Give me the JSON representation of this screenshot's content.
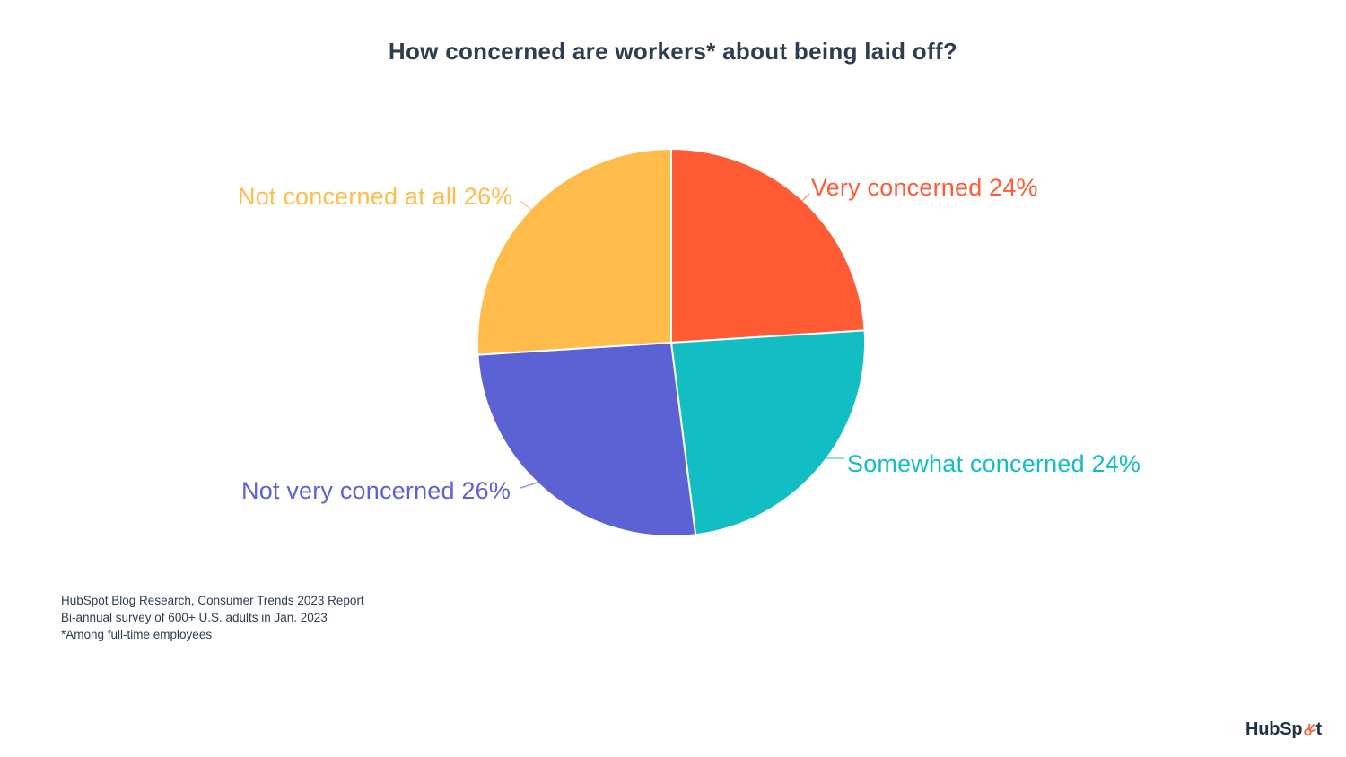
{
  "title": {
    "text": "How concerned are workers* about being laid off?",
    "color": "#2D3E50"
  },
  "chart_data": {
    "type": "pie",
    "title": "How concerned are workers* about being laid off?",
    "start_angle_deg": 0,
    "direction": "clockwise",
    "legend": "none",
    "labels_position": "outside-with-connectors",
    "slices": [
      {
        "label": "Very concerned",
        "value": 24,
        "display": "Very concerned 24%",
        "color": "#FF5C35"
      },
      {
        "label": "Somewhat concerned",
        "value": 24,
        "display": "Somewhat concerned 24%",
        "color": "#12BEC4"
      },
      {
        "label": "Not very concerned",
        "value": 26,
        "display": "Not very concerned 26%",
        "color": "#5C62D4"
      },
      {
        "label": "Not concerned at all",
        "value": 26,
        "display": "Not concerned at all 26%",
        "color": "#FFBC4B"
      }
    ]
  },
  "footnotes": {
    "lines": [
      "HubSpot Blog Research, Consumer Trends 2023 Report",
      "Bi-annual survey of 600+ U.S. adults in Jan. 2023",
      "*Among full-time employees"
    ],
    "color": "#2D3E50"
  },
  "logo": {
    "name": "HubSpot",
    "text_before": "HubSp",
    "text_after": "t",
    "sprocket_color": "#FF5C35",
    "text_color": "#213343"
  }
}
